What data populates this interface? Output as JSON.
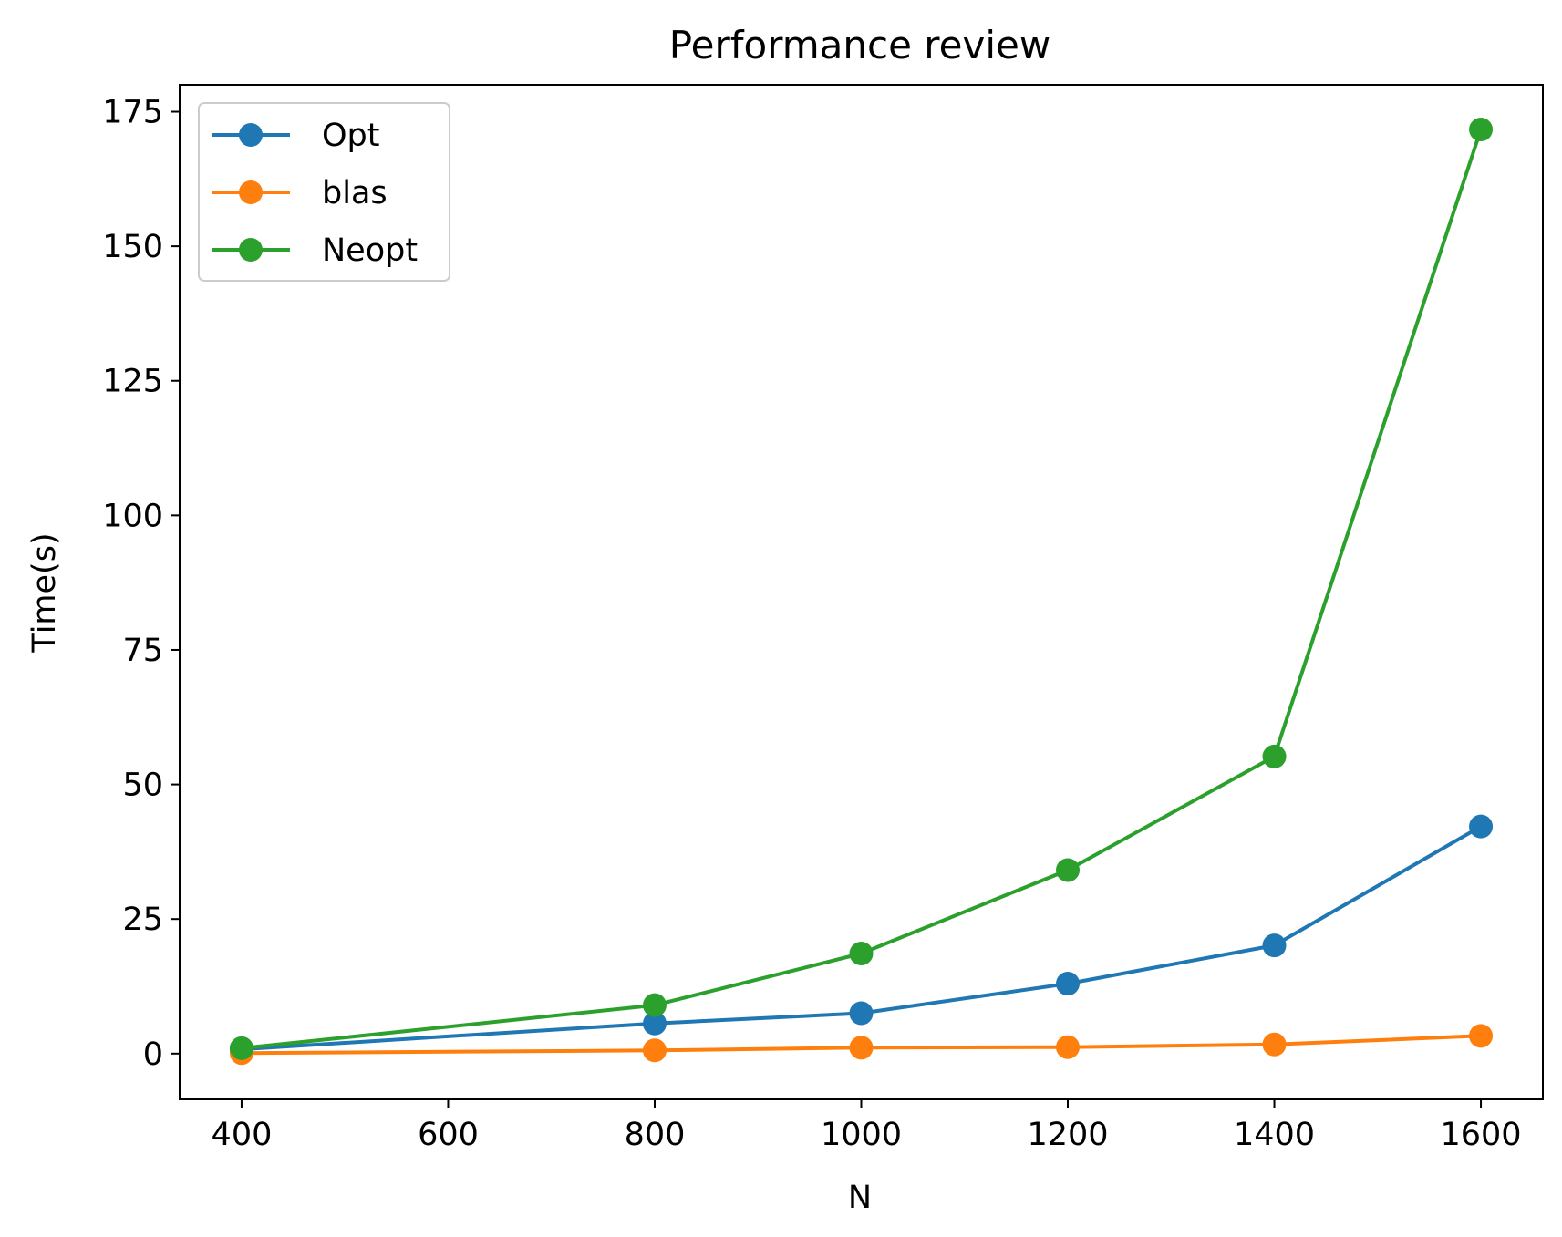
{
  "chart_data": {
    "type": "line",
    "title": "Performance review",
    "xlabel": "N",
    "ylabel": "Time(s)",
    "x": [
      400,
      800,
      1000,
      1200,
      1400,
      1600
    ],
    "xlim": [
      340,
      1660
    ],
    "ylim": [
      -8.5,
      180
    ],
    "xticks": [
      400,
      600,
      800,
      1000,
      1200,
      1400,
      1600
    ],
    "yticks": [
      0,
      25,
      50,
      75,
      100,
      125,
      150,
      175
    ],
    "grid": false,
    "legend_position": "top-left",
    "series": [
      {
        "name": "Opt",
        "color": "#1f77b4",
        "values": [
          0.8,
          5.6,
          7.5,
          13.0,
          20.1,
          42.2
        ]
      },
      {
        "name": "blas",
        "color": "#ff7f0e",
        "values": [
          0.1,
          0.6,
          1.1,
          1.2,
          1.7,
          3.3
        ]
      },
      {
        "name": "Neopt",
        "color": "#2ca02c",
        "values": [
          1.0,
          9.0,
          18.6,
          34.1,
          55.2,
          171.7
        ]
      }
    ]
  }
}
